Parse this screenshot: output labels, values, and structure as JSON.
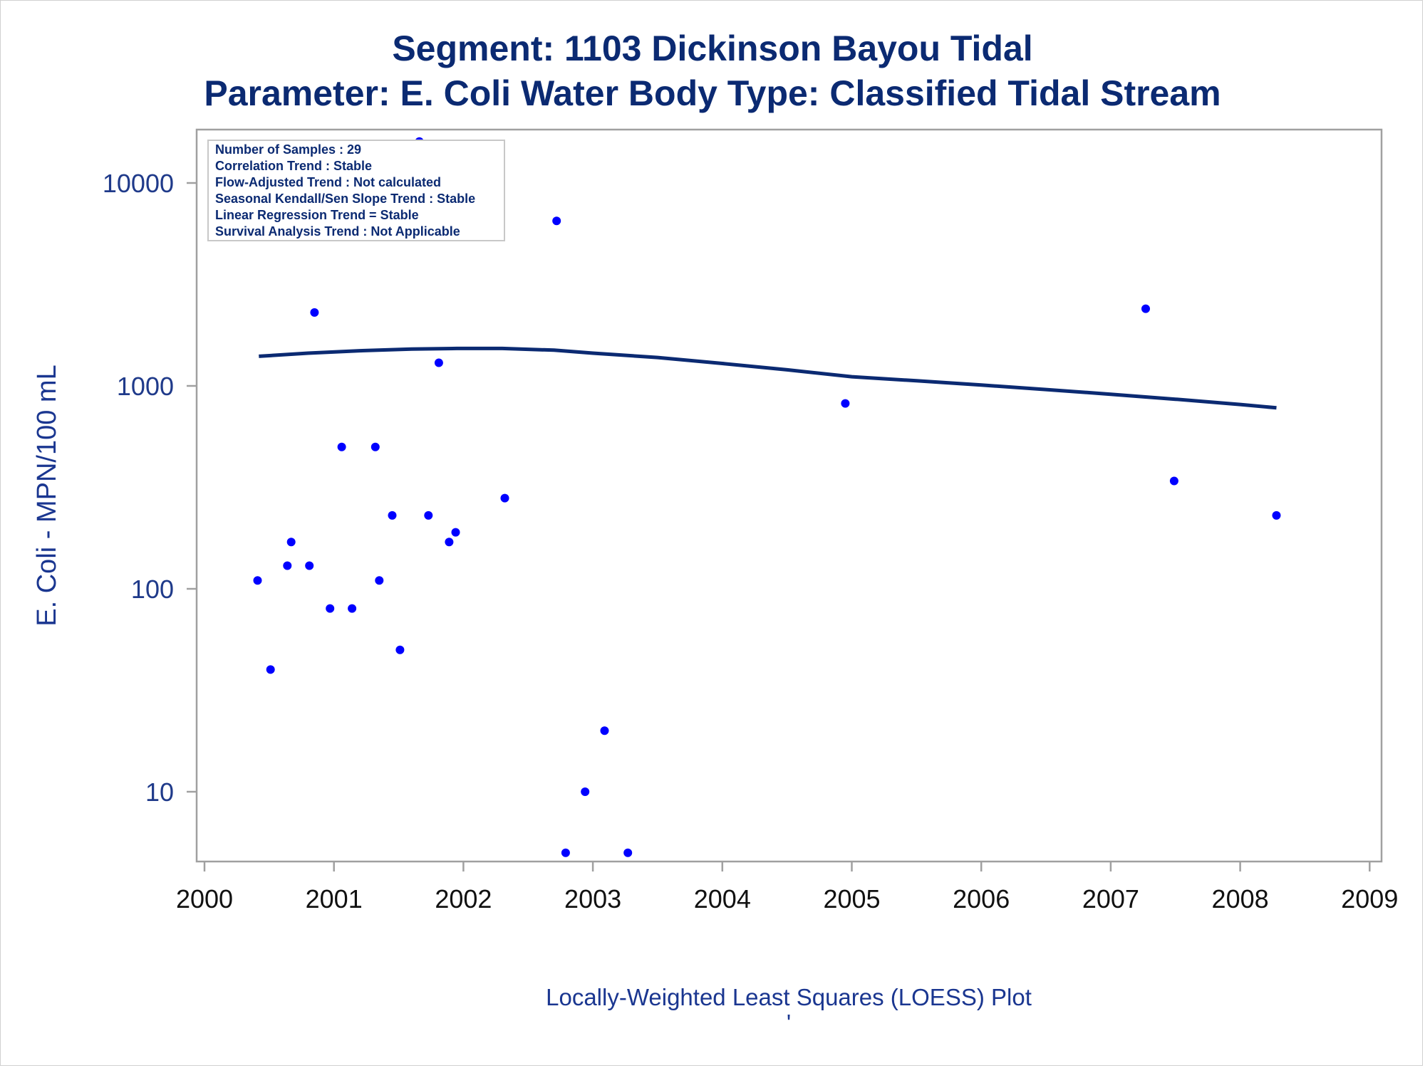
{
  "titles": {
    "line1": "Segment: 1103  Dickinson Bayou Tidal",
    "line2": "Parameter: E. Coli   Water Body Type: Classified Tidal Stream"
  },
  "stats_box": {
    "lines": [
      "Number of Samples : 29",
      "Correlation Trend : Stable",
      "Flow-Adjusted Trend : Not calculated",
      "Seasonal Kendall/Sen Slope Trend : Stable",
      "Linear Regression Trend = Stable",
      "Survival Analysis Trend : Not Applicable"
    ]
  },
  "footer": {
    "label": "Locally-Weighted Least Squares (LOESS) Plot",
    "mark": "'"
  },
  "colors": {
    "points": "#0000ff",
    "loess": "#0b2a72",
    "title": "#0b2a72",
    "axis": "#a0a0a0"
  },
  "chart_data": {
    "type": "scatter",
    "title": "Segment: 1103  Dickinson Bayou Tidal",
    "subtitle": "Parameter: E. Coli   Water Body Type: Classified Tidal Stream",
    "xlabel": "",
    "ylabel": "E. Coli - MPN/100 mL",
    "x_scale": "linear (year)",
    "y_scale": "log10",
    "xlim": [
      2000,
      2009
    ],
    "ylim": [
      4.8,
      17000
    ],
    "x_ticks": [
      2000,
      2001,
      2002,
      2003,
      2004,
      2005,
      2006,
      2007,
      2008,
      2009
    ],
    "x_tick_labels": [
      "2000",
      "2001",
      "2002",
      "2003",
      "2004",
      "2005",
      "2006",
      "2007",
      "2008",
      "2009"
    ],
    "y_ticks": [
      10,
      100,
      1000,
      10000
    ],
    "y_tick_labels": [
      "10",
      "100",
      "1000",
      "10000"
    ],
    "grid": false,
    "series": [
      {
        "kind": "scatter",
        "x": [
          2000.41,
          2000.51,
          2000.64,
          2000.67,
          2000.81,
          2000.85,
          2000.97,
          2001.06,
          2001.14,
          2001.18,
          2001.32,
          2001.35,
          2001.45,
          2001.51,
          2001.66,
          2001.73,
          2001.81,
          2001.89,
          2001.94,
          2002.32,
          2002.72,
          2002.79,
          2002.94,
          2003.09,
          2003.27,
          2004.95,
          2007.27,
          2007.49,
          2008.28
        ],
        "y": [
          110,
          40,
          130,
          170,
          130,
          2300,
          80,
          500,
          80,
          9000,
          500,
          110,
          230,
          50,
          16000,
          230,
          1300,
          170,
          190,
          280,
          6500,
          5,
          10,
          20,
          5,
          820,
          2400,
          340,
          230
        ]
      },
      {
        "kind": "line",
        "x": [
          2000.42,
          2000.8,
          2001.2,
          2001.6,
          2001.95,
          2002.3,
          2002.7,
          2003.0,
          2003.5,
          2004.0,
          2004.5,
          2005.0,
          2005.5,
          2006.0,
          2006.5,
          2007.0,
          2007.5,
          2008.0,
          2008.28
        ],
        "y": [
          1400,
          1450,
          1490,
          1520,
          1530,
          1530,
          1500,
          1450,
          1380,
          1290,
          1200,
          1110,
          1060,
          1010,
          960,
          910,
          860,
          810,
          780
        ]
      }
    ]
  }
}
